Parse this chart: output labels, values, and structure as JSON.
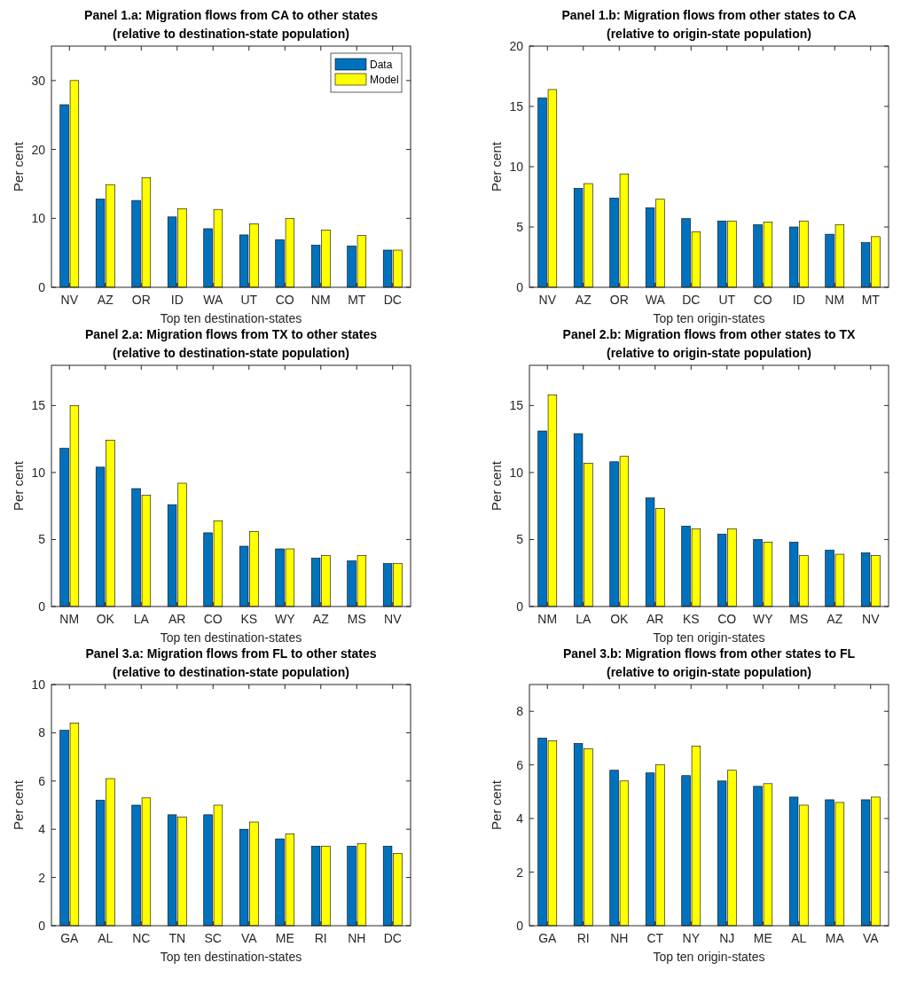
{
  "chart_data": [
    {
      "type": "bar",
      "title": "Panel 1.a: Migration flows from CA to other states",
      "subtitle": "(relative to destination-state population)",
      "xlabel": "Top ten destination-states",
      "ylabel": "Per cent",
      "categories": [
        "NV",
        "AZ",
        "OR",
        "ID",
        "WA",
        "UT",
        "CO",
        "NM",
        "MT",
        "DC"
      ],
      "ylim": [
        0,
        35
      ],
      "yticks": [
        0,
        10,
        20,
        30
      ],
      "legend": "top right",
      "series": [
        {
          "name": "Data",
          "color": "#0072bd",
          "values": [
            26.5,
            12.8,
            12.6,
            10.2,
            8.5,
            7.6,
            6.9,
            6.1,
            6.0,
            5.4
          ]
        },
        {
          "name": "Model",
          "color": "#ffff00",
          "values": [
            30.0,
            14.9,
            15.9,
            11.4,
            11.3,
            9.2,
            10.0,
            8.3,
            7.5,
            5.4
          ]
        }
      ]
    },
    {
      "type": "bar",
      "title": "Panel 1.b: Migration flows from other states to CA",
      "subtitle": "(relative to origin-state population)",
      "xlabel": "Top ten origin-states",
      "ylabel": "Per cent",
      "categories": [
        "NV",
        "AZ",
        "OR",
        "WA",
        "DC",
        "UT",
        "CO",
        "ID",
        "NM",
        "MT"
      ],
      "ylim": [
        0,
        20
      ],
      "yticks": [
        0,
        5,
        10,
        15,
        20
      ],
      "series": [
        {
          "color": "#0072bd",
          "values": [
            15.7,
            8.2,
            7.4,
            6.6,
            5.7,
            5.5,
            5.2,
            5.0,
            4.4,
            3.7
          ]
        },
        {
          "color": "#ffff00",
          "values": [
            16.4,
            8.6,
            9.4,
            7.3,
            4.6,
            5.5,
            5.4,
            5.5,
            5.2,
            4.2
          ]
        }
      ]
    },
    {
      "type": "bar",
      "title": "Panel 2.a: Migration flows from TX to other states",
      "subtitle": "(relative to destination-state population)",
      "xlabel": "Top ten destination-states",
      "ylabel": "Per cent",
      "categories": [
        "NM",
        "OK",
        "LA",
        "AR",
        "CO",
        "KS",
        "WY",
        "AZ",
        "MS",
        "NV"
      ],
      "ylim": [
        0,
        18
      ],
      "yticks": [
        0,
        5,
        10,
        15
      ],
      "series": [
        {
          "color": "#0072bd",
          "values": [
            11.8,
            10.4,
            8.8,
            7.6,
            5.5,
            4.5,
            4.3,
            3.6,
            3.4,
            3.2
          ]
        },
        {
          "color": "#ffff00",
          "values": [
            15.0,
            12.4,
            8.3,
            9.2,
            6.4,
            5.6,
            4.3,
            3.8,
            3.8,
            3.2
          ]
        }
      ]
    },
    {
      "type": "bar",
      "title": "Panel 2.b: Migration flows from other states to TX",
      "subtitle": "(relative to origin-state population)",
      "xlabel": "Top ten origin-states",
      "ylabel": "Per cent",
      "categories": [
        "NM",
        "LA",
        "OK",
        "AR",
        "KS",
        "CO",
        "WY",
        "MS",
        "AZ",
        "NV"
      ],
      "ylim": [
        0,
        18
      ],
      "yticks": [
        0,
        5,
        10,
        15
      ],
      "series": [
        {
          "color": "#0072bd",
          "values": [
            13.1,
            12.9,
            10.8,
            8.1,
            6.0,
            5.4,
            5.0,
            4.8,
            4.2,
            4.0
          ]
        },
        {
          "color": "#ffff00",
          "values": [
            15.8,
            10.7,
            11.2,
            7.3,
            5.8,
            5.8,
            4.8,
            3.8,
            3.9,
            3.8
          ]
        }
      ]
    },
    {
      "type": "bar",
      "title": "Panel 3.a: Migration flows from FL to other states",
      "subtitle": "(relative to destination-state population)",
      "xlabel": "Top ten destination-states",
      "ylabel": "Per cent",
      "categories": [
        "GA",
        "AL",
        "NC",
        "TN",
        "SC",
        "VA",
        "ME",
        "RI",
        "NH",
        "DC"
      ],
      "ylim": [
        0,
        10
      ],
      "yticks": [
        0,
        2,
        4,
        6,
        8,
        10
      ],
      "series": [
        {
          "color": "#0072bd",
          "values": [
            8.1,
            5.2,
            5.0,
            4.6,
            4.6,
            4.0,
            3.6,
            3.3,
            3.3,
            3.3
          ]
        },
        {
          "color": "#ffff00",
          "values": [
            8.4,
            6.1,
            5.3,
            4.5,
            5.0,
            4.3,
            3.8,
            3.3,
            3.4,
            3.0
          ]
        }
      ]
    },
    {
      "type": "bar",
      "title": "Panel 3.b: Migration flows from other states to FL",
      "subtitle": "(relative to origin-state population)",
      "xlabel": "Top ten origin-states",
      "ylabel": "Per cent",
      "categories": [
        "GA",
        "RI",
        "NH",
        "CT",
        "NY",
        "NJ",
        "ME",
        "AL",
        "MA",
        "VA"
      ],
      "ylim": [
        0,
        9
      ],
      "yticks": [
        0,
        2,
        4,
        6,
        8
      ],
      "series": [
        {
          "color": "#0072bd",
          "values": [
            7.0,
            6.8,
            5.8,
            5.7,
            5.6,
            5.4,
            5.2,
            4.8,
            4.7,
            4.7
          ]
        },
        {
          "color": "#ffff00",
          "values": [
            6.9,
            6.6,
            5.4,
            6.0,
            6.7,
            5.8,
            5.3,
            4.5,
            4.6,
            4.8
          ]
        }
      ]
    }
  ]
}
